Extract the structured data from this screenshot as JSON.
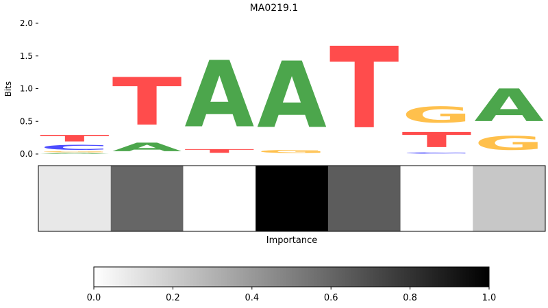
{
  "chart_data": [
    {
      "type": "sequence-logo",
      "title": "MA0219.1",
      "ylabel": "Bits",
      "ylim": [
        0,
        2.0
      ],
      "yticks": [
        "0.0",
        "0.5",
        "1.0",
        "1.5",
        "2.0"
      ],
      "colors": {
        "A": "#4CA64C",
        "C": "#4C4CFF",
        "G": "#FFC04C",
        "T": "#FF4C4C"
      },
      "positions": [
        [
          {
            "base": "A",
            "bits": 0.02
          },
          {
            "base": "G",
            "bits": 0.02
          },
          {
            "base": "C",
            "bits": 0.12
          },
          {
            "base": "T",
            "bits": 0.16
          }
        ],
        [
          {
            "base": "A",
            "bits": 0.21
          },
          {
            "base": "T",
            "bits": 1.17
          }
        ],
        [
          {
            "base": "T",
            "bits": 0.09
          },
          {
            "base": "A",
            "bits": 1.63
          }
        ],
        [
          {
            "base": "G",
            "bits": 0.08
          },
          {
            "base": "A",
            "bits": 1.63
          }
        ],
        [
          {
            "base": "T",
            "bits": 2.0
          }
        ],
        [
          {
            "base": "C",
            "bits": 0.03
          },
          {
            "base": "T",
            "bits": 0.37
          },
          {
            "base": "G",
            "bits": 0.39
          }
        ],
        [
          {
            "base": "G",
            "bits": 0.34
          },
          {
            "base": "A",
            "bits": 0.8
          }
        ]
      ]
    },
    {
      "type": "heatmap",
      "xlabel": "Importance",
      "values": [
        0.09,
        0.6,
        0.0,
        1.0,
        0.64,
        0.0,
        0.22
      ]
    },
    {
      "type": "colorbar",
      "range": [
        0.0,
        1.0
      ],
      "ticks": [
        "0.0",
        "0.2",
        "0.4",
        "0.6",
        "0.8",
        "1.0"
      ]
    }
  ]
}
